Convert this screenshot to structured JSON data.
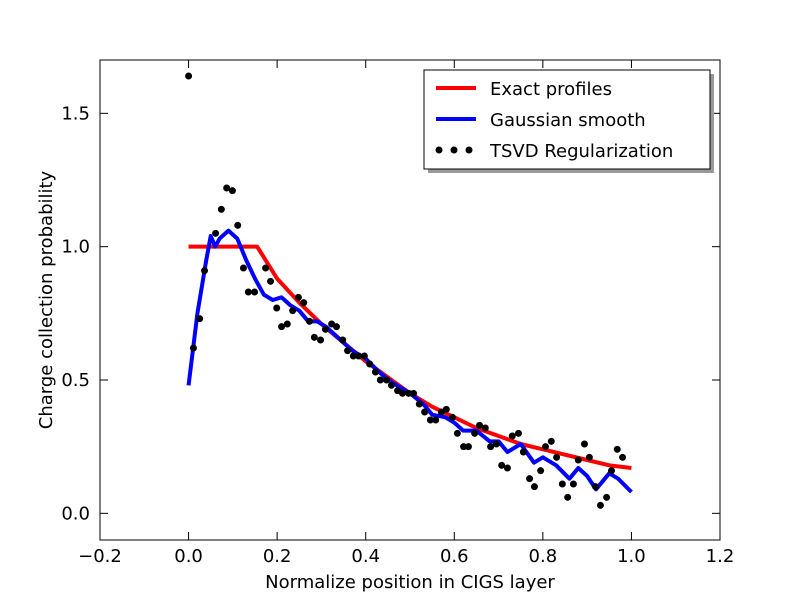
{
  "chart_data": {
    "type": "line",
    "xlabel": "Normalize position in CIGS layer",
    "ylabel": "Charge collection probability",
    "xlim": [
      -0.2,
      1.2
    ],
    "ylim": [
      -0.1,
      1.7
    ],
    "xticks": [
      {
        "value": -0.2,
        "label": "−0.2"
      },
      {
        "value": 0,
        "label": "0.0"
      },
      {
        "value": 0.2,
        "label": "0.2"
      },
      {
        "value": 0.4,
        "label": "0.4"
      },
      {
        "value": 0.6,
        "label": "0.6"
      },
      {
        "value": 0.8,
        "label": "0.8"
      },
      {
        "value": 1,
        "label": "1.0"
      },
      {
        "value": 1.2,
        "label": "1.2"
      }
    ],
    "yticks": [
      {
        "value": 0,
        "label": "0.0"
      },
      {
        "value": 0.5,
        "label": "0.5"
      },
      {
        "value": 1,
        "label": "1.0"
      },
      {
        "value": 1.5,
        "label": "1.5"
      }
    ],
    "legend": "upper right",
    "series": [
      {
        "name": "Exact profiles",
        "color": "#ff0000",
        "style": "line",
        "x": [
          0,
          0.155,
          0.2,
          0.25,
          0.3,
          0.35,
          0.4,
          0.45,
          0.5,
          0.55,
          0.6,
          0.65,
          0.7,
          0.75,
          0.8,
          0.85,
          0.9,
          0.95,
          1.0
        ],
        "values": [
          1,
          1,
          0.88,
          0.79,
          0.71,
          0.64,
          0.57,
          0.51,
          0.45,
          0.4,
          0.36,
          0.32,
          0.29,
          0.26,
          0.24,
          0.22,
          0.2,
          0.18,
          0.17
        ]
      },
      {
        "name": "Gaussian smooth",
        "color": "#0000ff",
        "style": "line",
        "x": [
          0,
          0.02,
          0.04,
          0.05,
          0.06,
          0.07,
          0.09,
          0.11,
          0.13,
          0.15,
          0.17,
          0.19,
          0.21,
          0.23,
          0.25,
          0.27,
          0.29,
          0.31,
          0.33,
          0.35,
          0.37,
          0.4,
          0.43,
          0.46,
          0.5,
          0.53,
          0.55,
          0.58,
          0.6,
          0.62,
          0.65,
          0.68,
          0.7,
          0.72,
          0.75,
          0.78,
          0.8,
          0.83,
          0.86,
          0.88,
          0.9,
          0.92,
          0.95,
          0.97,
          1.0
        ],
        "values": [
          0.48,
          0.75,
          0.95,
          1.04,
          1.0,
          1.03,
          1.06,
          1.03,
          0.95,
          0.88,
          0.82,
          0.8,
          0.81,
          0.78,
          0.76,
          0.72,
          0.72,
          0.7,
          0.67,
          0.64,
          0.61,
          0.58,
          0.53,
          0.49,
          0.45,
          0.41,
          0.37,
          0.36,
          0.34,
          0.31,
          0.31,
          0.27,
          0.27,
          0.23,
          0.26,
          0.19,
          0.21,
          0.18,
          0.13,
          0.17,
          0.14,
          0.09,
          0.15,
          0.13,
          0.08
        ]
      },
      {
        "name": "TSVD Regularization",
        "color": "#000000",
        "style": "points",
        "x": [
          0,
          0.011,
          0.025,
          0.036,
          0.061,
          0.074,
          0.086,
          0.099,
          0.111,
          0.124,
          0.135,
          0.149,
          0.174,
          0.185,
          0.199,
          0.21,
          0.223,
          0.235,
          0.248,
          0.26,
          0.273,
          0.284,
          0.298,
          0.309,
          0.323,
          0.334,
          0.348,
          0.359,
          0.372,
          0.384,
          0.397,
          0.409,
          0.422,
          0.433,
          0.447,
          0.458,
          0.472,
          0.483,
          0.497,
          0.508,
          0.521,
          0.533,
          0.546,
          0.558,
          0.571,
          0.582,
          0.596,
          0.607,
          0.621,
          0.632,
          0.646,
          0.657,
          0.67,
          0.682,
          0.695,
          0.707,
          0.72,
          0.731,
          0.745,
          0.756,
          0.77,
          0.781,
          0.795,
          0.806,
          0.819,
          0.831,
          0.844,
          0.856,
          0.869,
          0.88,
          0.894,
          0.905,
          0.919,
          0.93,
          0.944,
          0.955,
          0.968,
          0.98
        ],
        "values": [
          1.64,
          0.62,
          0.73,
          0.91,
          1.05,
          1.14,
          1.22,
          1.21,
          1.08,
          0.92,
          0.83,
          0.83,
          0.92,
          0.87,
          0.77,
          0.7,
          0.71,
          0.76,
          0.81,
          0.79,
          0.72,
          0.66,
          0.65,
          0.69,
          0.71,
          0.7,
          0.65,
          0.61,
          0.59,
          0.59,
          0.59,
          0.56,
          0.53,
          0.5,
          0.5,
          0.48,
          0.46,
          0.45,
          0.45,
          0.45,
          0.41,
          0.38,
          0.35,
          0.35,
          0.38,
          0.39,
          0.36,
          0.3,
          0.25,
          0.25,
          0.3,
          0.33,
          0.32,
          0.25,
          0.26,
          0.18,
          0.17,
          0.29,
          0.3,
          0.23,
          0.13,
          0.1,
          0.16,
          0.25,
          0.27,
          0.21,
          0.11,
          0.06,
          0.11,
          0.2,
          0.26,
          0.21,
          0.1,
          0.03,
          0.06,
          0.16,
          0.24,
          0.21
        ]
      }
    ]
  }
}
